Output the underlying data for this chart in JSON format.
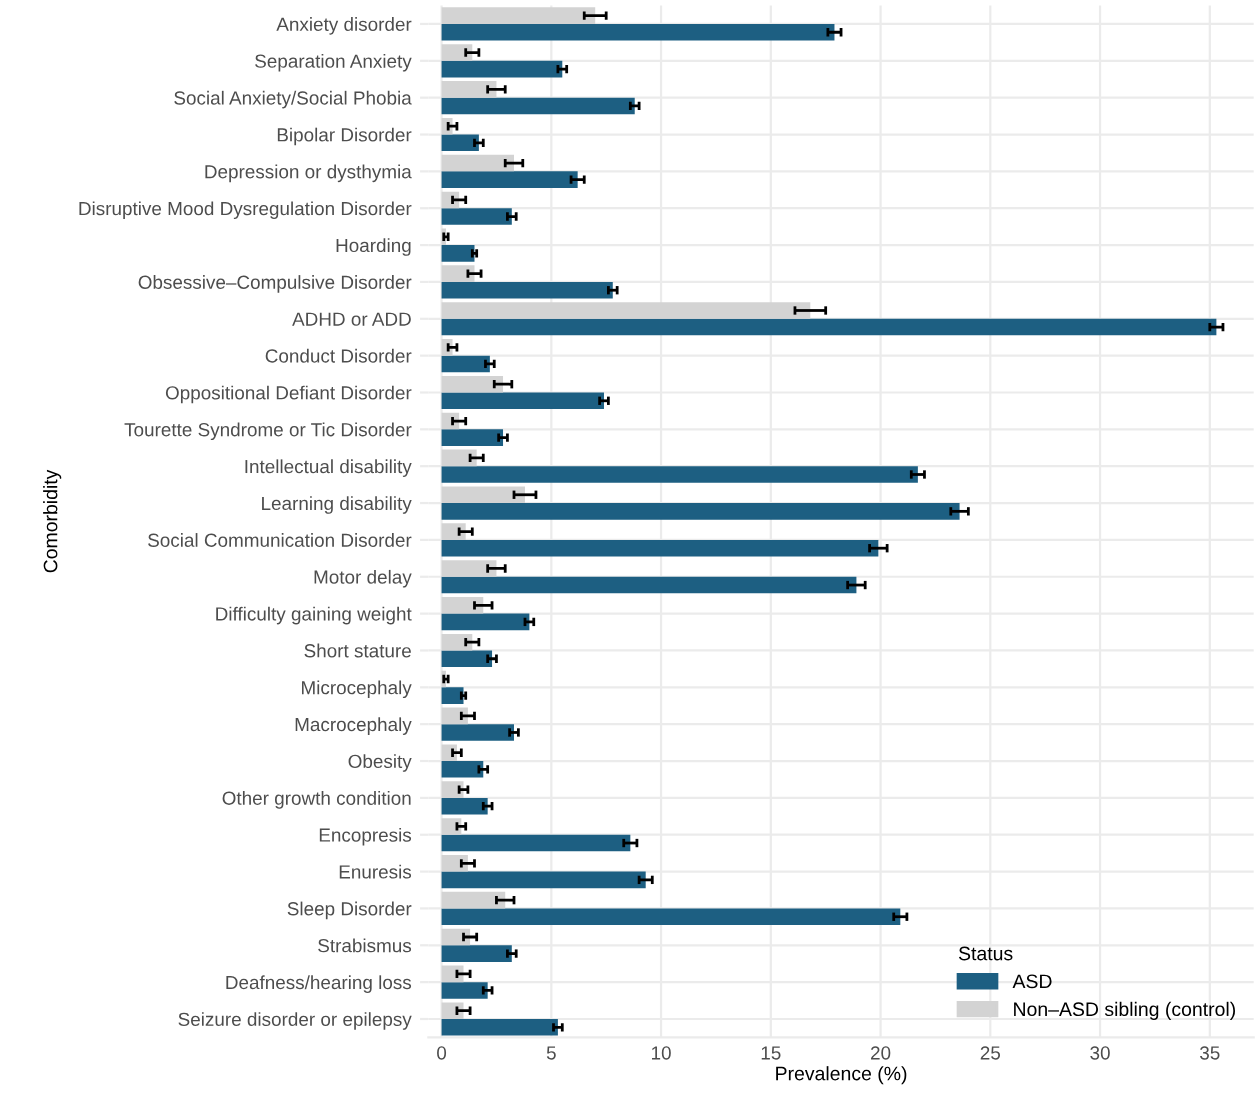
{
  "chart_data": {
    "type": "bar",
    "orientation": "horizontal",
    "xlabel": "Prevalence (%)",
    "ylabel": "Comorbidity",
    "legend_title": "Status",
    "legend": "bottom right",
    "grid": true,
    "categories": [
      "Anxiety disorder",
      "Separation Anxiety",
      "Social Anxiety/Social Phobia",
      "Bipolar Disorder",
      "Depression or dysthymia",
      "Disruptive Mood Dysregulation Disorder",
      "Hoarding",
      "Obsessive–Compulsive Disorder",
      "ADHD or ADD",
      "Conduct Disorder",
      "Oppositional Defiant Disorder",
      "Tourette Syndrome or Tic Disorder",
      "Intellectual disability",
      "Learning disability",
      "Social Communication Disorder",
      "Motor delay",
      "Difficulty gaining weight",
      "Short stature",
      "Microcephaly",
      "Macrocephaly",
      "Obesity",
      "Other growth condition",
      "Encopresis",
      "Enuresis",
      "Sleep Disorder",
      "Strabismus",
      "Deafness/hearing loss",
      "Seizure disorder or epilepsy"
    ],
    "series": [
      {
        "name": "ASD",
        "color": "#1d5f82",
        "values": [
          17.9,
          5.5,
          8.8,
          1.7,
          6.2,
          3.2,
          1.5,
          7.8,
          35.3,
          2.2,
          7.4,
          2.8,
          21.7,
          23.6,
          19.9,
          18.9,
          4.0,
          2.3,
          1.0,
          3.3,
          1.9,
          2.1,
          8.6,
          9.3,
          20.9,
          3.2,
          2.1,
          5.3
        ],
        "errors": [
          0.3,
          0.2,
          0.2,
          0.2,
          0.3,
          0.2,
          0.1,
          0.2,
          0.3,
          0.2,
          0.2,
          0.2,
          0.3,
          0.4,
          0.4,
          0.4,
          0.2,
          0.2,
          0.1,
          0.2,
          0.2,
          0.2,
          0.3,
          0.3,
          0.3,
          0.2,
          0.2,
          0.2
        ]
      },
      {
        "name": "Non–ASD sibling (control)",
        "color": "#d3d3d3",
        "values": [
          7.0,
          1.4,
          2.5,
          0.5,
          3.3,
          0.8,
          0.2,
          1.5,
          16.8,
          0.5,
          2.8,
          0.8,
          1.6,
          3.8,
          1.1,
          2.5,
          1.9,
          1.4,
          0.2,
          1.2,
          0.7,
          1.0,
          0.9,
          1.2,
          2.9,
          1.3,
          1.0,
          1.0
        ],
        "errors": [
          0.5,
          0.3,
          0.4,
          0.2,
          0.4,
          0.3,
          0.1,
          0.3,
          0.7,
          0.2,
          0.4,
          0.3,
          0.3,
          0.5,
          0.3,
          0.4,
          0.4,
          0.3,
          0.1,
          0.3,
          0.2,
          0.2,
          0.2,
          0.3,
          0.4,
          0.3,
          0.3,
          0.3
        ]
      }
    ],
    "xlim": [
      -0.6,
      37
    ],
    "xticks": [
      0,
      5,
      10,
      15,
      20,
      25,
      30,
      35
    ]
  }
}
